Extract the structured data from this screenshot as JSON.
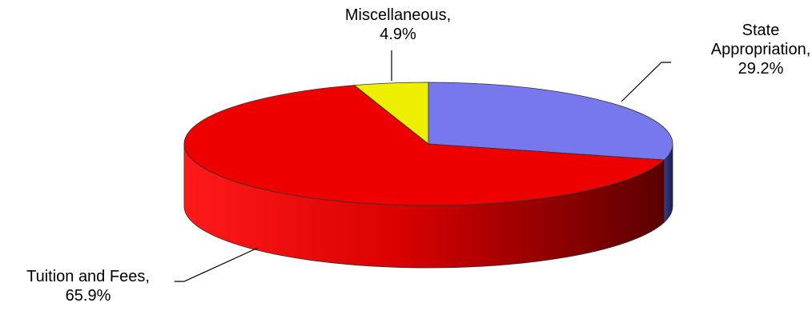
{
  "chart_data": {
    "type": "pie",
    "style": "3d",
    "title": "",
    "slices": [
      {
        "category": "State Appropriation",
        "value": 29.2,
        "color": "#7777ee",
        "label_lines": [
          "State",
          "Appropriation,",
          "29.2%"
        ]
      },
      {
        "category": "Tuition and Fees",
        "value": 65.9,
        "color": "#ee0000",
        "label_lines": [
          "Tuition and Fees,",
          "65.9%"
        ]
      },
      {
        "category": "Miscellaneous",
        "value": 4.9,
        "color": "#eeee00",
        "label_lines": [
          "Miscellaneous,",
          "4.9%"
        ]
      }
    ],
    "legend": "none"
  }
}
